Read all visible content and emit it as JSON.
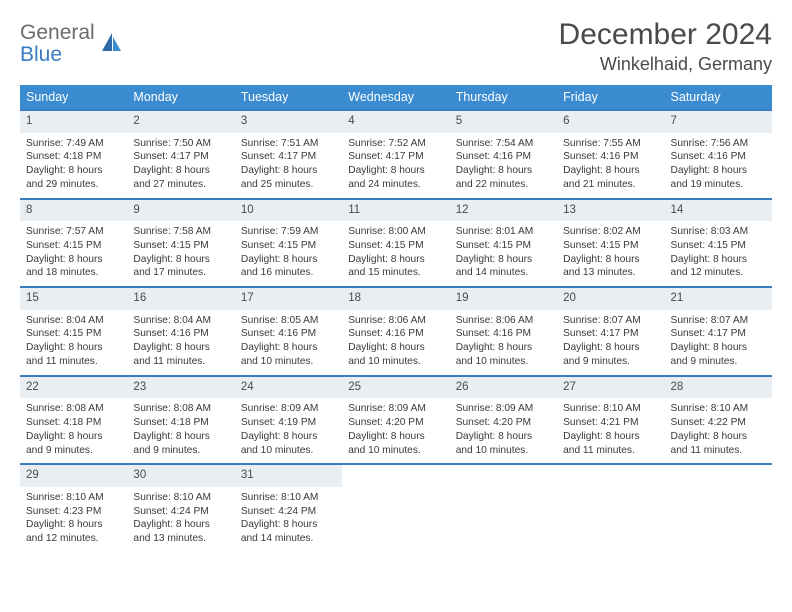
{
  "logo": {
    "top": "General",
    "bottom": "Blue"
  },
  "title": "December 2024",
  "location": "Winkelhaid, Germany",
  "colors": {
    "header_bg": "#3a8bd0",
    "header_text": "#ffffff",
    "row_divider": "#3a7cc4",
    "daynum_bg": "#e9eef2",
    "text": "#3a3a3a",
    "logo_top": "#6b6b6b",
    "logo_bottom": "#3a7cc4"
  },
  "dayHeaders": [
    "Sunday",
    "Monday",
    "Tuesday",
    "Wednesday",
    "Thursday",
    "Friday",
    "Saturday"
  ],
  "weeks": [
    [
      {
        "n": "1",
        "sunrise": "7:49 AM",
        "sunset": "4:18 PM",
        "daylight": "8 hours and 29 minutes."
      },
      {
        "n": "2",
        "sunrise": "7:50 AM",
        "sunset": "4:17 PM",
        "daylight": "8 hours and 27 minutes."
      },
      {
        "n": "3",
        "sunrise": "7:51 AM",
        "sunset": "4:17 PM",
        "daylight": "8 hours and 25 minutes."
      },
      {
        "n": "4",
        "sunrise": "7:52 AM",
        "sunset": "4:17 PM",
        "daylight": "8 hours and 24 minutes."
      },
      {
        "n": "5",
        "sunrise": "7:54 AM",
        "sunset": "4:16 PM",
        "daylight": "8 hours and 22 minutes."
      },
      {
        "n": "6",
        "sunrise": "7:55 AM",
        "sunset": "4:16 PM",
        "daylight": "8 hours and 21 minutes."
      },
      {
        "n": "7",
        "sunrise": "7:56 AM",
        "sunset": "4:16 PM",
        "daylight": "8 hours and 19 minutes."
      }
    ],
    [
      {
        "n": "8",
        "sunrise": "7:57 AM",
        "sunset": "4:15 PM",
        "daylight": "8 hours and 18 minutes."
      },
      {
        "n": "9",
        "sunrise": "7:58 AM",
        "sunset": "4:15 PM",
        "daylight": "8 hours and 17 minutes."
      },
      {
        "n": "10",
        "sunrise": "7:59 AM",
        "sunset": "4:15 PM",
        "daylight": "8 hours and 16 minutes."
      },
      {
        "n": "11",
        "sunrise": "8:00 AM",
        "sunset": "4:15 PM",
        "daylight": "8 hours and 15 minutes."
      },
      {
        "n": "12",
        "sunrise": "8:01 AM",
        "sunset": "4:15 PM",
        "daylight": "8 hours and 14 minutes."
      },
      {
        "n": "13",
        "sunrise": "8:02 AM",
        "sunset": "4:15 PM",
        "daylight": "8 hours and 13 minutes."
      },
      {
        "n": "14",
        "sunrise": "8:03 AM",
        "sunset": "4:15 PM",
        "daylight": "8 hours and 12 minutes."
      }
    ],
    [
      {
        "n": "15",
        "sunrise": "8:04 AM",
        "sunset": "4:15 PM",
        "daylight": "8 hours and 11 minutes."
      },
      {
        "n": "16",
        "sunrise": "8:04 AM",
        "sunset": "4:16 PM",
        "daylight": "8 hours and 11 minutes."
      },
      {
        "n": "17",
        "sunrise": "8:05 AM",
        "sunset": "4:16 PM",
        "daylight": "8 hours and 10 minutes."
      },
      {
        "n": "18",
        "sunrise": "8:06 AM",
        "sunset": "4:16 PM",
        "daylight": "8 hours and 10 minutes."
      },
      {
        "n": "19",
        "sunrise": "8:06 AM",
        "sunset": "4:16 PM",
        "daylight": "8 hours and 10 minutes."
      },
      {
        "n": "20",
        "sunrise": "8:07 AM",
        "sunset": "4:17 PM",
        "daylight": "8 hours and 9 minutes."
      },
      {
        "n": "21",
        "sunrise": "8:07 AM",
        "sunset": "4:17 PM",
        "daylight": "8 hours and 9 minutes."
      }
    ],
    [
      {
        "n": "22",
        "sunrise": "8:08 AM",
        "sunset": "4:18 PM",
        "daylight": "8 hours and 9 minutes."
      },
      {
        "n": "23",
        "sunrise": "8:08 AM",
        "sunset": "4:18 PM",
        "daylight": "8 hours and 9 minutes."
      },
      {
        "n": "24",
        "sunrise": "8:09 AM",
        "sunset": "4:19 PM",
        "daylight": "8 hours and 10 minutes."
      },
      {
        "n": "25",
        "sunrise": "8:09 AM",
        "sunset": "4:20 PM",
        "daylight": "8 hours and 10 minutes."
      },
      {
        "n": "26",
        "sunrise": "8:09 AM",
        "sunset": "4:20 PM",
        "daylight": "8 hours and 10 minutes."
      },
      {
        "n": "27",
        "sunrise": "8:10 AM",
        "sunset": "4:21 PM",
        "daylight": "8 hours and 11 minutes."
      },
      {
        "n": "28",
        "sunrise": "8:10 AM",
        "sunset": "4:22 PM",
        "daylight": "8 hours and 11 minutes."
      }
    ],
    [
      {
        "n": "29",
        "sunrise": "8:10 AM",
        "sunset": "4:23 PM",
        "daylight": "8 hours and 12 minutes."
      },
      {
        "n": "30",
        "sunrise": "8:10 AM",
        "sunset": "4:24 PM",
        "daylight": "8 hours and 13 minutes."
      },
      {
        "n": "31",
        "sunrise": "8:10 AM",
        "sunset": "4:24 PM",
        "daylight": "8 hours and 14 minutes."
      },
      null,
      null,
      null,
      null
    ]
  ],
  "labels": {
    "sunrise": "Sunrise:",
    "sunset": "Sunset:",
    "daylight": "Daylight:"
  }
}
